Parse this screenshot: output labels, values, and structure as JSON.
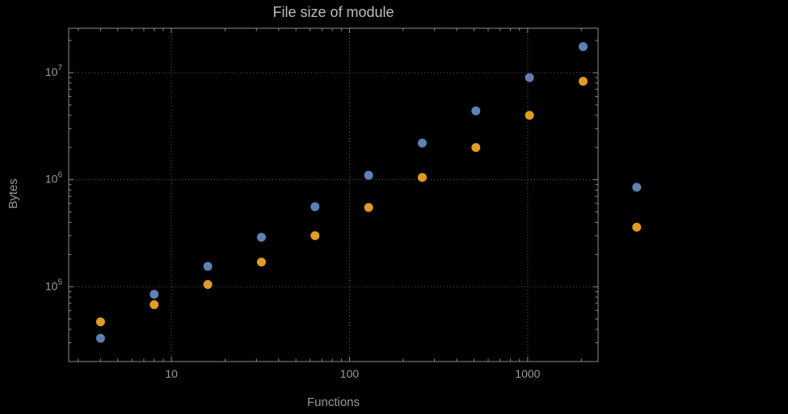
{
  "chart_data": {
    "type": "scatter",
    "title": "File size of module",
    "xlabel": "Functions",
    "ylabel": "Bytes",
    "x_scale": "log",
    "y_scale": "log",
    "xlim": [
      2.65,
      2485
    ],
    "ylim": [
      20000,
      26000000
    ],
    "x_ticks": [
      10,
      100,
      1000
    ],
    "y_ticks_exponents": [
      5,
      6,
      7
    ],
    "grid": "dotted",
    "legend": "none",
    "series": [
      {
        "name": "blue-series",
        "color": "#5e81b5",
        "x": [
          4,
          8,
          16,
          32,
          64,
          128,
          256,
          512,
          1024,
          2048,
          4096
        ],
        "y": [
          33000,
          85000,
          155000,
          290000,
          560000,
          1100000,
          2200000,
          4400000,
          9000000,
          17500000,
          850000
        ]
      },
      {
        "name": "orange-series",
        "color": "#e19c24",
        "x": [
          4,
          8,
          16,
          32,
          64,
          128,
          256,
          512,
          1024,
          2048,
          4096
        ],
        "y": [
          47000,
          68000,
          105000,
          170000,
          300000,
          550000,
          1050000,
          2000000,
          4000000,
          8300000,
          360000
        ]
      }
    ]
  },
  "colors": {
    "background": "#000000",
    "frame": "#8c8c8c",
    "grid": "#5a5a5a",
    "text": "#9a9a9a",
    "title": "#bdbdbd"
  }
}
